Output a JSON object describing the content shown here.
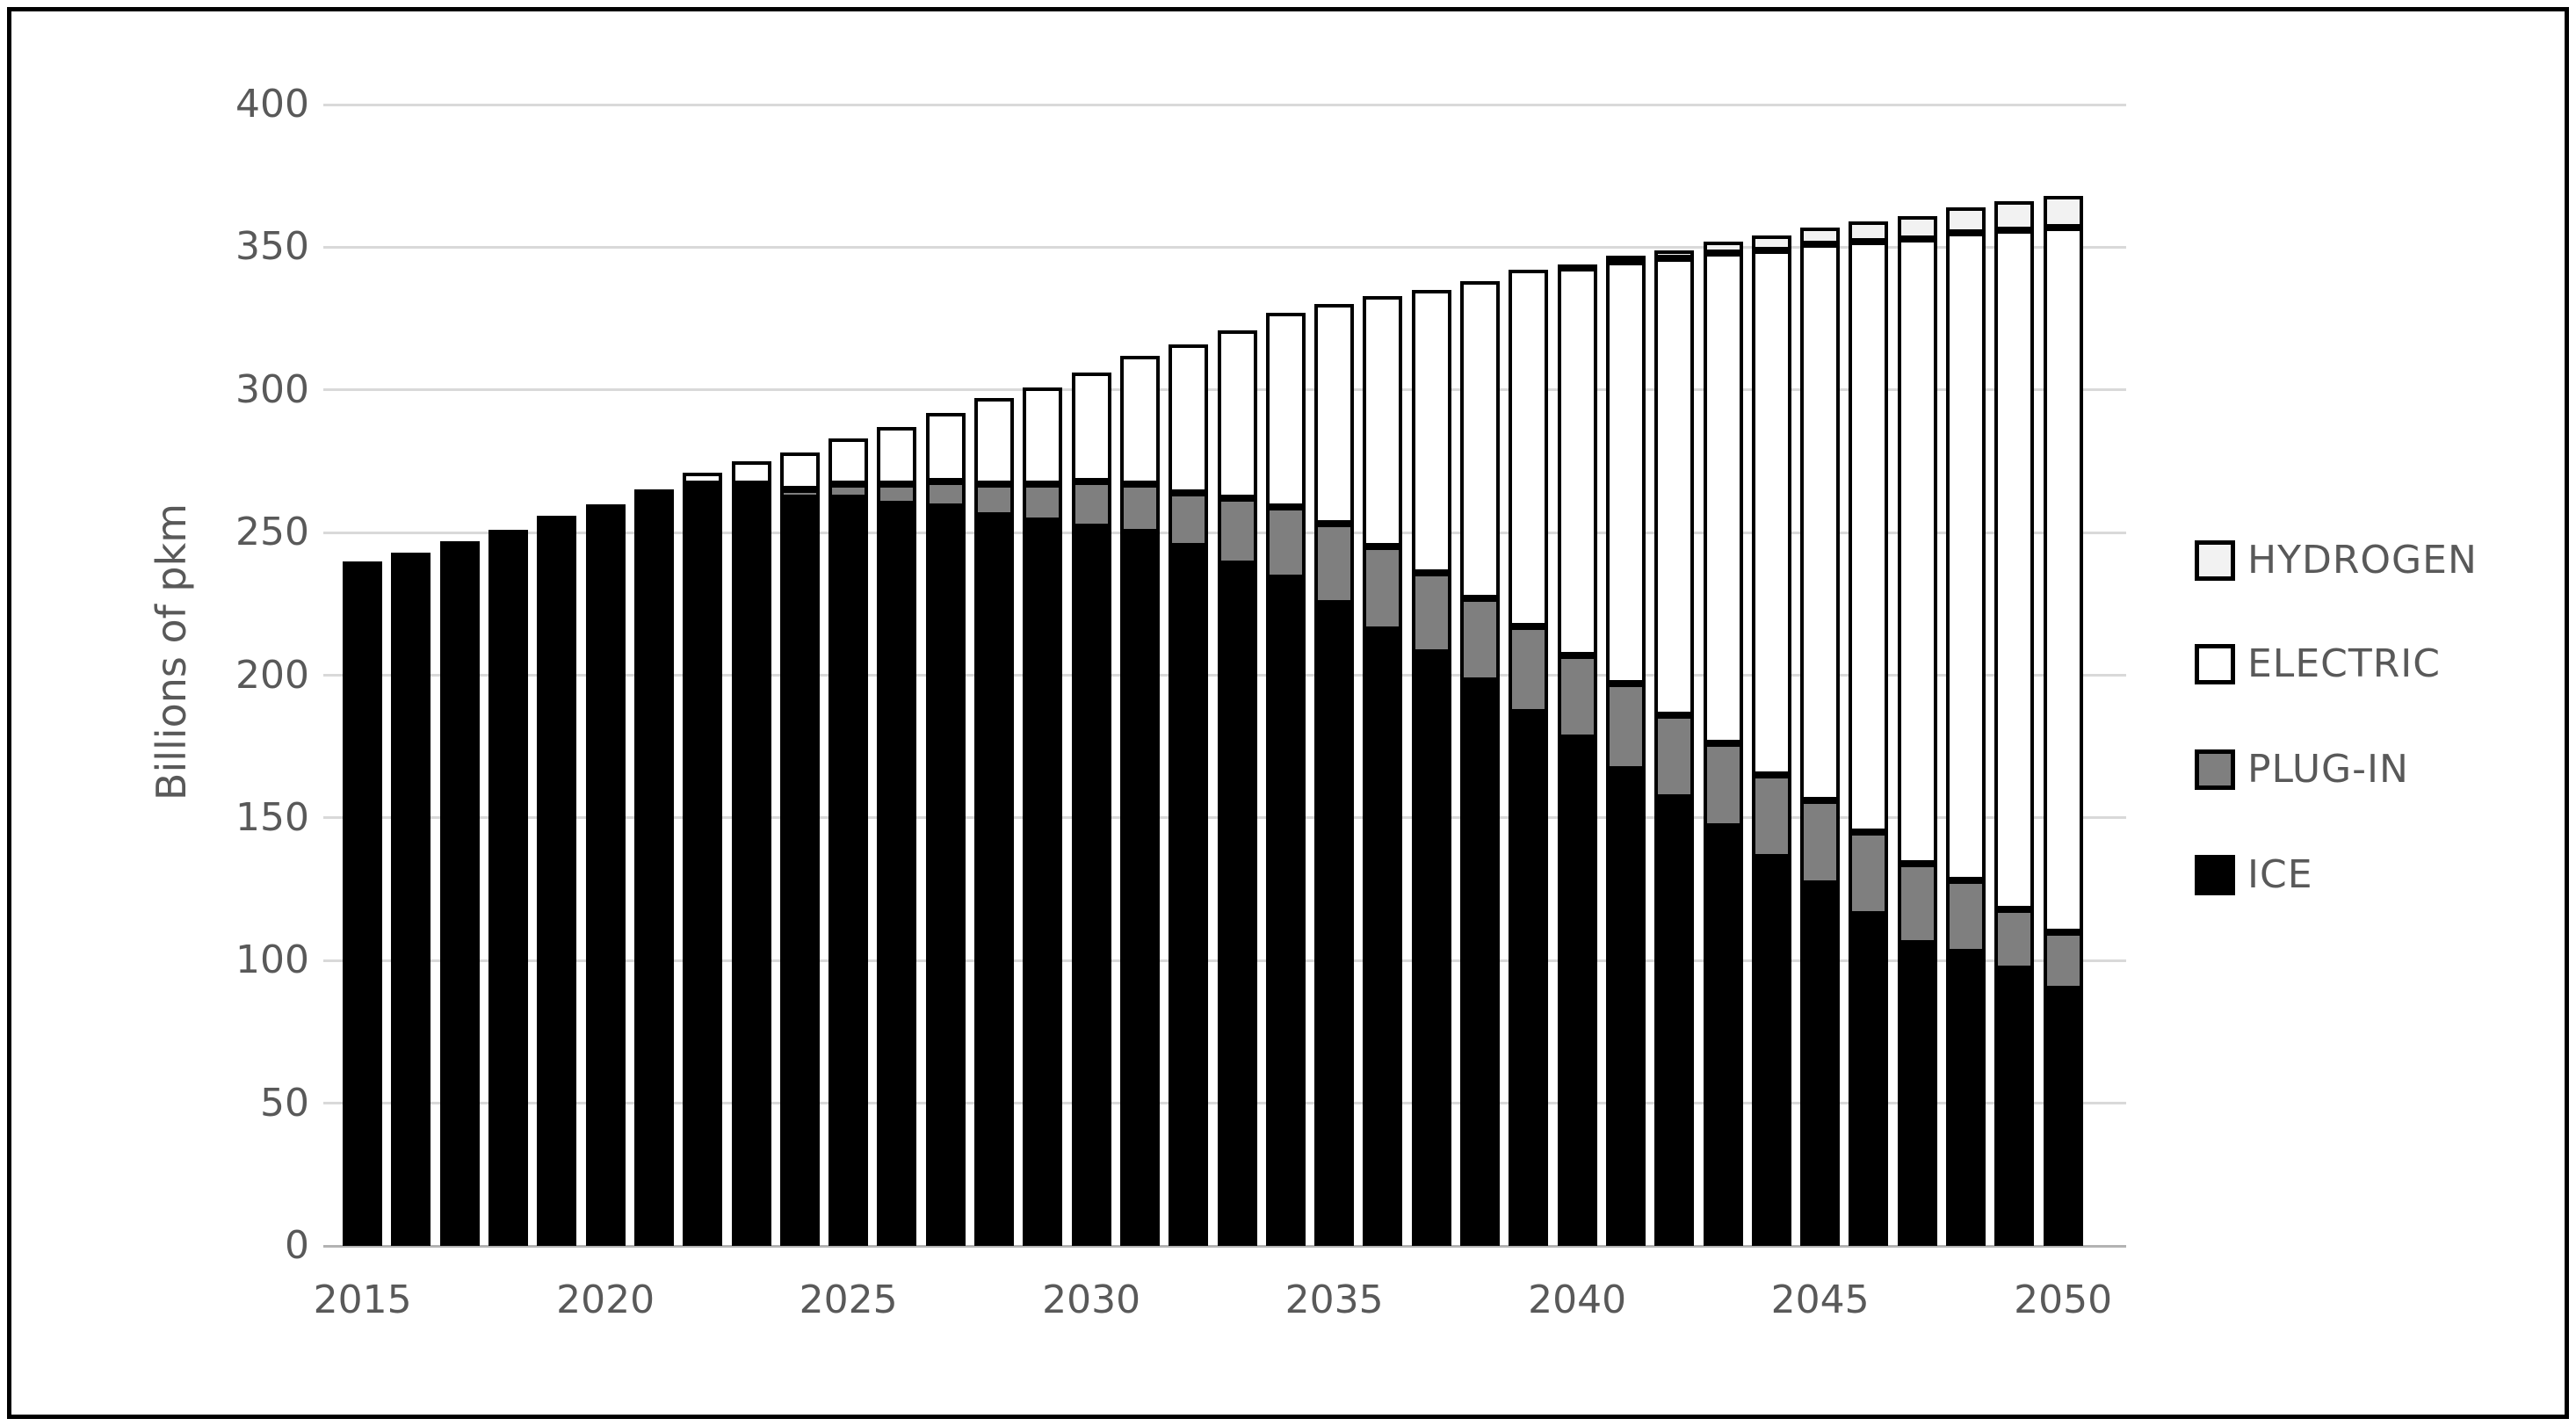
{
  "chart_data": {
    "type": "bar",
    "stacked": true,
    "title": "",
    "xlabel": "",
    "ylabel": "Billions of pkm",
    "x": [
      2015,
      2016,
      2017,
      2018,
      2019,
      2020,
      2021,
      2022,
      2023,
      2024,
      2025,
      2026,
      2027,
      2028,
      2029,
      2030,
      2031,
      2032,
      2033,
      2034,
      2035,
      2036,
      2037,
      2038,
      2039,
      2040,
      2041,
      2042,
      2043,
      2044,
      2045,
      2046,
      2047,
      2048,
      2049,
      2050
    ],
    "x_tick_labels": [
      "2015",
      "2020",
      "2025",
      "2030",
      "2035",
      "2040",
      "2045",
      "2050"
    ],
    "x_tick_every": 5,
    "ylim": [
      0,
      400
    ],
    "y_ticks": [
      0,
      50,
      100,
      150,
      200,
      250,
      300,
      350,
      400
    ],
    "grid": true,
    "legend_position": "right",
    "series": [
      {
        "name": "ICE",
        "fill": "#000000",
        "border": "#000000",
        "values": [
          240,
          243,
          247,
          251,
          256,
          260,
          264,
          266,
          265,
          262,
          262,
          260,
          259,
          256,
          254,
          252,
          250,
          245,
          239,
          234,
          225,
          216,
          208,
          198,
          187,
          178,
          167,
          157,
          147,
          136,
          127,
          116,
          106,
          103,
          97,
          90
        ]
      },
      {
        "name": "PLUG-IN",
        "fill": "#7f7f7f",
        "border": "#000000",
        "values": [
          0,
          0,
          0,
          0,
          0,
          0,
          0,
          1,
          2,
          3,
          5,
          7,
          9,
          11,
          13,
          16,
          17,
          19,
          23,
          25,
          28,
          29,
          28,
          29,
          30,
          29,
          30,
          29,
          29,
          29,
          29,
          29,
          28,
          25,
          21,
          20
        ]
      },
      {
        "name": "ELECTRIC",
        "fill": "#ffffff",
        "border": "#000000",
        "values": [
          0,
          0,
          0,
          0,
          0,
          0,
          1,
          4,
          8,
          13,
          16,
          20,
          24,
          30,
          34,
          38,
          45,
          52,
          59,
          68,
          77,
          88,
          99,
          111,
          125,
          136,
          148,
          160,
          172,
          184,
          195,
          207,
          219,
          227,
          238,
          247
        ]
      },
      {
        "name": "HYDROGEN",
        "fill": "#f2f2f2",
        "border": "#000000",
        "values": [
          0,
          0,
          0,
          0,
          0,
          0,
          0,
          0,
          0,
          0,
          0,
          0,
          0,
          0,
          0,
          0,
          0,
          0,
          0,
          0,
          0,
          0,
          0,
          0,
          0,
          1,
          2,
          3,
          4,
          5,
          6,
          7,
          8,
          9,
          10,
          11
        ]
      }
    ],
    "legend_order": [
      "HYDROGEN",
      "ELECTRIC",
      "PLUG-IN",
      "ICE"
    ]
  },
  "colors": {
    "gridline": "#d9d9d9",
    "baseline": "#b3b3b3",
    "tick_text": "#595959",
    "frame": "#000000",
    "background": "#ffffff"
  },
  "layout_note": "stacked column chart, black outer frame, legend at right"
}
